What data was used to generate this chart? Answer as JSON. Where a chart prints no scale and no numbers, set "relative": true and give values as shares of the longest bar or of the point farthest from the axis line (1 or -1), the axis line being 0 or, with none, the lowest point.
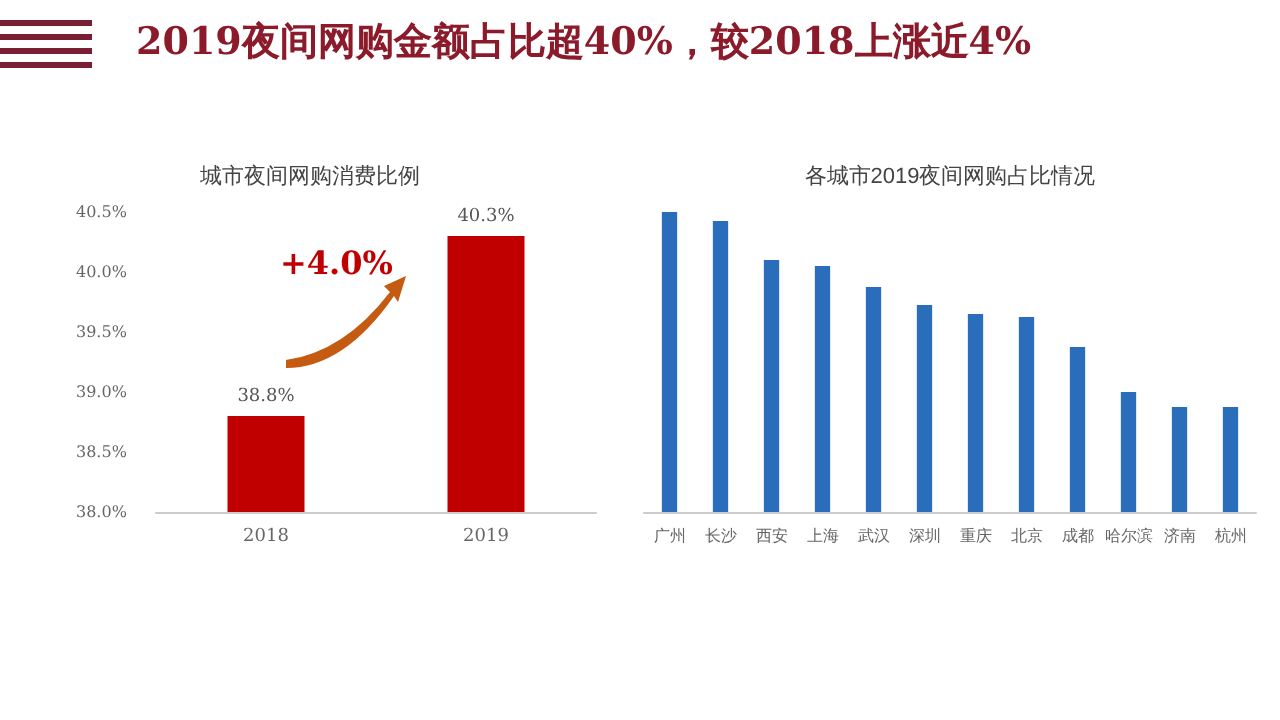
{
  "chart_data": [
    {
      "type": "bar",
      "title": "2019夜间网购金额占比超40%，较2018上涨近4%",
      "subtitle": "城市夜间网购消费比例",
      "categories": [
        "2018",
        "2019"
      ],
      "values": [
        38.8,
        40.3
      ],
      "value_labels": [
        "38.8%",
        "40.3%"
      ],
      "color": "#c00000",
      "ylim": [
        38.0,
        40.5
      ],
      "yticks": [
        {
          "value": 38.0,
          "label": "38.0%"
        },
        {
          "value": 38.5,
          "label": "38.5%"
        },
        {
          "value": 39.0,
          "label": "39.0%"
        },
        {
          "value": 39.5,
          "label": "39.5%"
        },
        {
          "value": 40.0,
          "label": "40.0%"
        },
        {
          "value": 40.5,
          "label": "40.5%"
        }
      ],
      "annotations": [
        "+4.0%"
      ],
      "grid": false
    },
    {
      "type": "bar",
      "title": "各城市2019夜间网购占比情况",
      "categories": [
        "广州",
        "长沙",
        "西安",
        "上海",
        "武汉",
        "深圳",
        "重庆",
        "北京",
        "成都",
        "哈尔滨",
        "济南",
        "杭州"
      ],
      "values": [
        1,
        0.97,
        0.84,
        0.82,
        0.75,
        0.69,
        0.66,
        0.65,
        0.55,
        0.4,
        0.35,
        0.35
      ],
      "color": "#2a6ebb",
      "relative": true,
      "grid": false
    }
  ]
}
